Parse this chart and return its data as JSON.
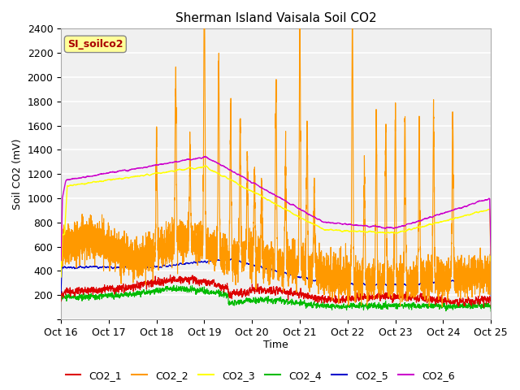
{
  "title": "Sherman Island Vaisala Soil CO2",
  "ylabel": "Soil CO2 (mV)",
  "xlabel": "Time",
  "legend_title": "SI_soilco2",
  "ylim": [
    0,
    2400
  ],
  "yticks": [
    0,
    200,
    400,
    600,
    800,
    1000,
    1200,
    1400,
    1600,
    1800,
    2000,
    2200,
    2400
  ],
  "xtick_labels": [
    "Oct 16",
    "Oct 17",
    "Oct 18",
    "Oct 19",
    "Oct 20",
    "Oct 21",
    "Oct 22",
    "Oct 23",
    "Oct 24",
    "Oct 25"
  ],
  "colors": {
    "CO2_1": "#dd0000",
    "CO2_2": "#ff9900",
    "CO2_3": "#ffff00",
    "CO2_4": "#00bb00",
    "CO2_5": "#0000cc",
    "CO2_6": "#cc00cc"
  },
  "bg_color": "#e8e8e8",
  "plot_bg": "#f0f0f0",
  "legend_box_color": "#ffff99",
  "legend_text_color": "#aa0000"
}
